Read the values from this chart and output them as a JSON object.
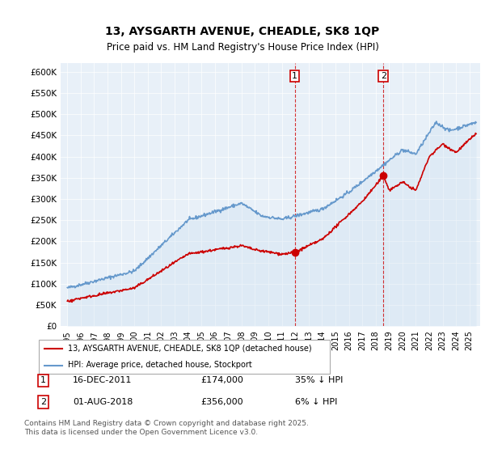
{
  "title1": "13, AYSGARTH AVENUE, CHEADLE, SK8 1QP",
  "title2": "Price paid vs. HM Land Registry's House Price Index (HPI)",
  "legend_house": "13, AYSGARTH AVENUE, CHEADLE, SK8 1QP (detached house)",
  "legend_hpi": "HPI: Average price, detached house, Stockport",
  "annotation1_label": "1",
  "annotation1_date": "16-DEC-2011",
  "annotation1_price": "£174,000",
  "annotation1_hpi": "35% ↓ HPI",
  "annotation2_label": "2",
  "annotation2_date": "01-AUG-2018",
  "annotation2_price": "£356,000",
  "annotation2_hpi": "6% ↓ HPI",
  "footer": "Contains HM Land Registry data © Crown copyright and database right 2025.\nThis data is licensed under the Open Government Licence v3.0.",
  "house_color": "#cc0000",
  "hpi_color": "#6699cc",
  "hpi_fill_color": "#cce0f0",
  "vline_color": "#cc0000",
  "vline_style": "--",
  "background_color": "#ffffff",
  "plot_bg_color": "#e8f0f8",
  "ylim": [
    0,
    620000
  ],
  "ylabel_ticks": [
    0,
    50000,
    100000,
    150000,
    200000,
    250000,
    300000,
    350000,
    400000,
    450000,
    500000,
    550000,
    600000
  ],
  "sale1_year": 2011.96,
  "sale1_price": 174000,
  "sale2_year": 2018.58,
  "sale2_price": 356000
}
